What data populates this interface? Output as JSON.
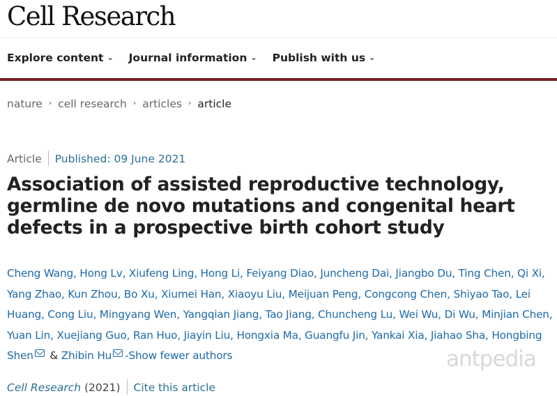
{
  "header": {
    "logo": "Cell Research"
  },
  "nav": [
    {
      "label": "Explore content"
    },
    {
      "label": "Journal information"
    },
    {
      "label": "Publish with us"
    }
  ],
  "breadcrumb": [
    "nature",
    "cell research",
    "articles",
    "article"
  ],
  "article": {
    "type": "Article",
    "published": "Published: 09 June 2021",
    "title": "Association of assisted reproductive technology, germline de novo mutations and congenital heart defects in a prospective birth cohort study",
    "authors_before": "Cheng Wang, Hong Lv, Xiufeng Ling, Hong Li, Feiyang Diao, Juncheng Dai, Jiangbo Du, Ting Chen, Qi Xi, Yang Zhao, Kun Zhou, Bo Xu, Xiumei Han, Xiaoyu Liu, Meijuan Peng, Congcong Chen, Shiyao Tao, Lei Huang, Cong Liu, Mingyang Wen, Yangqian Jiang, Tao Jiang, Chuncheng Lu, Wei Wu, Di Wu, Minjian Chen, Yuan Lin, Xuejiang Guo, Ran Huo, Jiayin Liu, Hongxia Ma, Guangfu Jin, Yankai Xia, Jiahao Sha, Hongbing Shen",
    "amp": " & ",
    "last_author": "Zhibin Hu",
    "show_fewer": "-Show fewer authors",
    "journal": "Cell Research",
    "year": " (2021)",
    "cite": "Cite this article"
  },
  "watermark": "antpedia"
}
